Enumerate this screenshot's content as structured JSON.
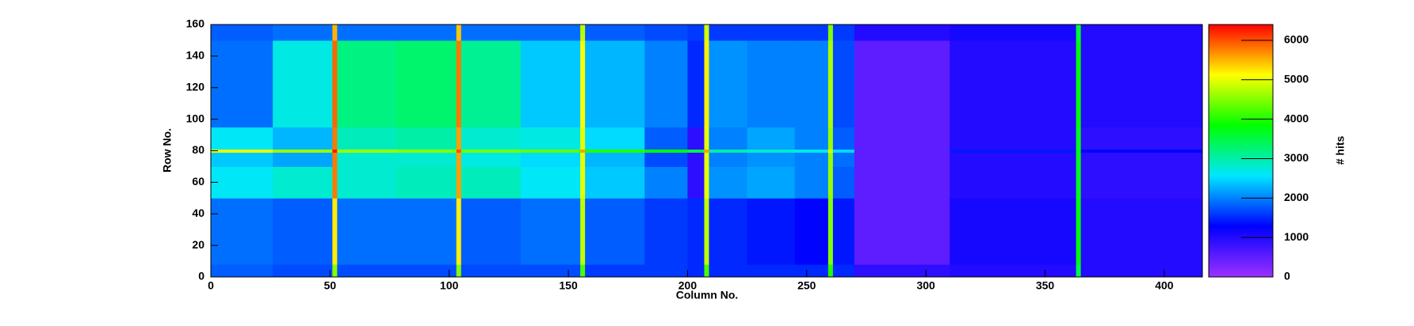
{
  "chart_data": {
    "type": "heatmap",
    "xlabel": "Column No.",
    "ylabel": "Row No.",
    "zlabel": "# hits",
    "xlim": [
      0,
      416
    ],
    "ylim": [
      0,
      160
    ],
    "zlim": [
      0,
      6400
    ],
    "xticks": [
      0,
      50,
      100,
      150,
      200,
      250,
      300,
      350,
      400
    ],
    "yticks": [
      0,
      20,
      40,
      60,
      80,
      100,
      120,
      140,
      160
    ],
    "zticks": [
      0,
      1000,
      2000,
      3000,
      4000,
      5000,
      6000
    ],
    "colormap": [
      "#9b30ff",
      "#0000ff",
      "#00e6ff",
      "#00ff00",
      "#ffff00",
      "#ff0000"
    ],
    "x_bins": [
      0,
      26,
      51,
      53,
      78,
      103,
      105,
      130,
      155,
      157,
      182,
      200,
      207,
      209,
      225,
      245,
      259,
      261,
      270,
      310,
      363,
      365,
      416
    ],
    "y_bins": [
      0,
      8,
      50,
      70,
      79,
      81,
      95,
      150,
      160
    ],
    "z": [
      [
        1800,
        1700,
        4500,
        1700,
        1700,
        4500,
        1700,
        1700,
        4200,
        1600,
        1600,
        1500,
        4200,
        1500,
        1500,
        1500,
        4000,
        1500,
        900,
        1000,
        3500,
        1000
      ],
      [
        1900,
        1800,
        5200,
        1900,
        1900,
        5200,
        1800,
        1900,
        4800,
        1800,
        1600,
        1500,
        4800,
        1500,
        1400,
        1300,
        4500,
        1400,
        500,
        1100,
        3800,
        1000
      ],
      [
        2600,
        2800,
        5800,
        2800,
        2900,
        5600,
        2900,
        2600,
        5000,
        2400,
        2000,
        900,
        5000,
        2100,
        2200,
        2000,
        4600,
        1800,
        500,
        1000,
        3700,
        900
      ],
      [
        2400,
        2200,
        5800,
        2800,
        2800,
        5600,
        2700,
        2500,
        5000,
        2300,
        1700,
        900,
        5000,
        2000,
        2100,
        2000,
        4600,
        1900,
        500,
        1000,
        3700,
        900
      ],
      [
        5000,
        4600,
        6300,
        4600,
        4500,
        6000,
        4400,
        4300,
        5600,
        4000,
        3800,
        3500,
        5600,
        3000,
        2800,
        2700,
        5000,
        2500,
        500,
        1400,
        3800,
        1300
      ],
      [
        2600,
        2300,
        5800,
        2900,
        3000,
        5600,
        2800,
        2700,
        5000,
        2500,
        1800,
        900,
        5000,
        2000,
        2200,
        2000,
        4600,
        1800,
        500,
        1000,
        3700,
        900
      ],
      [
        1900,
        2700,
        5900,
        3200,
        3300,
        5800,
        3100,
        2400,
        5100,
        2300,
        2000,
        1500,
        5200,
        2100,
        2000,
        2000,
        4700,
        1700,
        500,
        1000,
        3800,
        1000
      ],
      [
        1800,
        1900,
        5500,
        1900,
        1900,
        5400,
        1900,
        1900,
        4800,
        1800,
        1700,
        1600,
        4900,
        1600,
        1600,
        1600,
        4500,
        1600,
        1000,
        1100,
        3600,
        1000
      ]
    ]
  }
}
